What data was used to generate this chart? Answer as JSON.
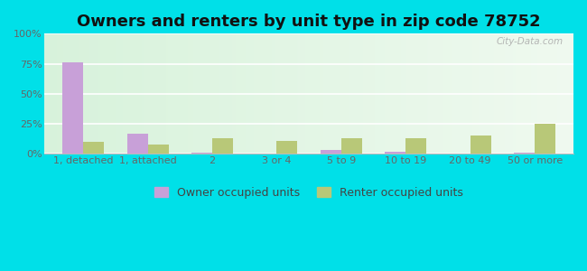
{
  "title": "Owners and renters by unit type in zip code 78752",
  "categories": [
    "1, detached",
    "1, attached",
    "2",
    "3 or 4",
    "5 to 9",
    "10 to 19",
    "20 to 49",
    "50 or more"
  ],
  "owner_values": [
    76,
    17,
    1,
    0,
    3,
    2,
    0,
    1
  ],
  "renter_values": [
    10,
    8,
    13,
    11,
    13,
    13,
    15,
    25
  ],
  "owner_color": "#c8a0d8",
  "renter_color": "#b8c878",
  "bg_color_top_left": "#c8f0d0",
  "bg_color_top_right": "#f0faf0",
  "bg_color_bottom": "#e0f5e0",
  "outer_bg": "#00e0e8",
  "ylim": [
    0,
    100
  ],
  "yticks": [
    0,
    25,
    50,
    75,
    100
  ],
  "ytick_labels": [
    "0%",
    "25%",
    "50%",
    "75%",
    "100%"
  ],
  "legend_owner": "Owner occupied units",
  "legend_renter": "Renter occupied units",
  "title_fontsize": 13,
  "tick_fontsize": 8,
  "legend_fontsize": 9,
  "bar_width": 0.32,
  "watermark": "City-Data.com"
}
